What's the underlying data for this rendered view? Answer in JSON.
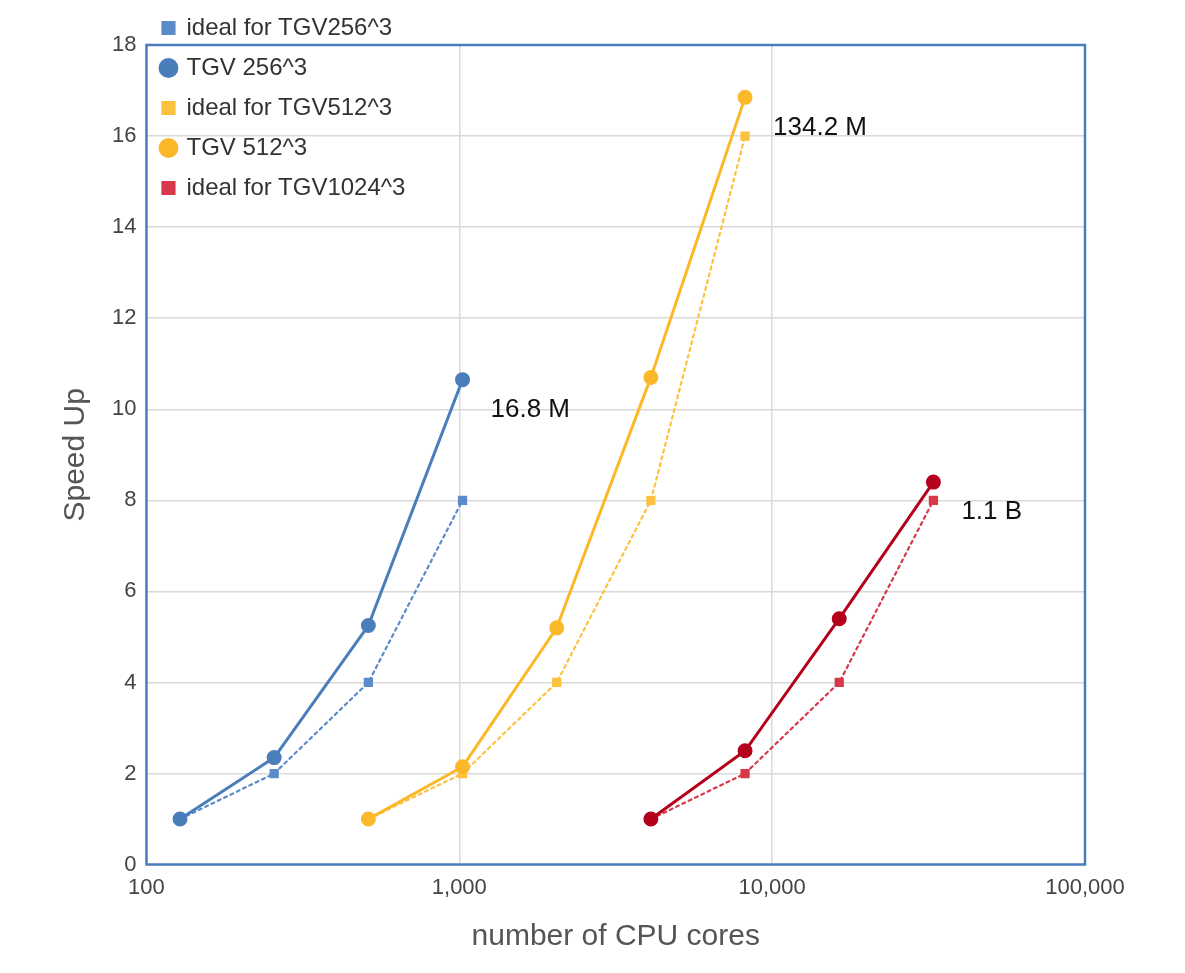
{
  "chart_data": {
    "type": "line",
    "xlabel": "number of CPU cores",
    "ylabel": "Speed Up",
    "log": "x",
    "grid": true,
    "legend": "top left",
    "xlim": [
      100,
      100000
    ],
    "xticks": [
      100,
      {
        "value": 1000,
        "label": "1,000"
      },
      {
        "value": 10000,
        "label": "10,000"
      },
      {
        "value": 100000,
        "label": "100,000"
      }
    ],
    "ylim": [
      0,
      18
    ],
    "yticks": [
      0,
      2,
      4,
      6,
      8,
      10,
      12,
      14,
      16,
      18
    ],
    "series": [
      {
        "name": "ideal for TGV256^3",
        "color": "#5b8bc9",
        "x": [
          128,
          256,
          512,
          1024
        ],
        "values": [
          1,
          2,
          4,
          8
        ],
        "marker": "square",
        "line_style": "dotted"
      },
      {
        "name": "TGV 256^3",
        "color": "#4a7ebb",
        "x": [
          128,
          256,
          512,
          1024
        ],
        "values": [
          1,
          2.35,
          5.25,
          10.65
        ],
        "marker": "circle",
        "line_style": "solid"
      },
      {
        "name": "ideal for TGV512^3",
        "color": "#fcc23e",
        "x": [
          512,
          1024,
          2048,
          4096,
          8192
        ],
        "values": [
          1,
          2,
          4,
          8,
          16
        ],
        "marker": "square",
        "line_style": "dotted"
      },
      {
        "name": "TGV 512^3",
        "color": "#fbb829",
        "x": [
          512,
          1024,
          2048,
          4096,
          8192
        ],
        "values": [
          1,
          2.15,
          5.2,
          10.7,
          16.85
        ],
        "marker": "circle",
        "line_style": "solid"
      },
      {
        "name": "ideal for TGV1024^3",
        "color": "#d8394a",
        "x": [
          4096,
          8192,
          16384,
          32768
        ],
        "values": [
          1,
          2,
          4,
          8
        ],
        "marker": "square",
        "line_style": "dotted"
      },
      {
        "color": "#b5001c",
        "x": [
          4096,
          8192,
          16384,
          32768
        ],
        "values": [
          1,
          2.5,
          5.4,
          8.4
        ],
        "marker": "circle",
        "line_style": "solid"
      }
    ],
    "annotations": [
      {
        "text": "16.8 M",
        "x": 1024,
        "y": 10.65
      },
      {
        "text": "134.2 M",
        "x": 8192,
        "y": 16.85
      },
      {
        "text": "1.1 B",
        "x": 32768,
        "y": 8.4
      }
    ]
  }
}
